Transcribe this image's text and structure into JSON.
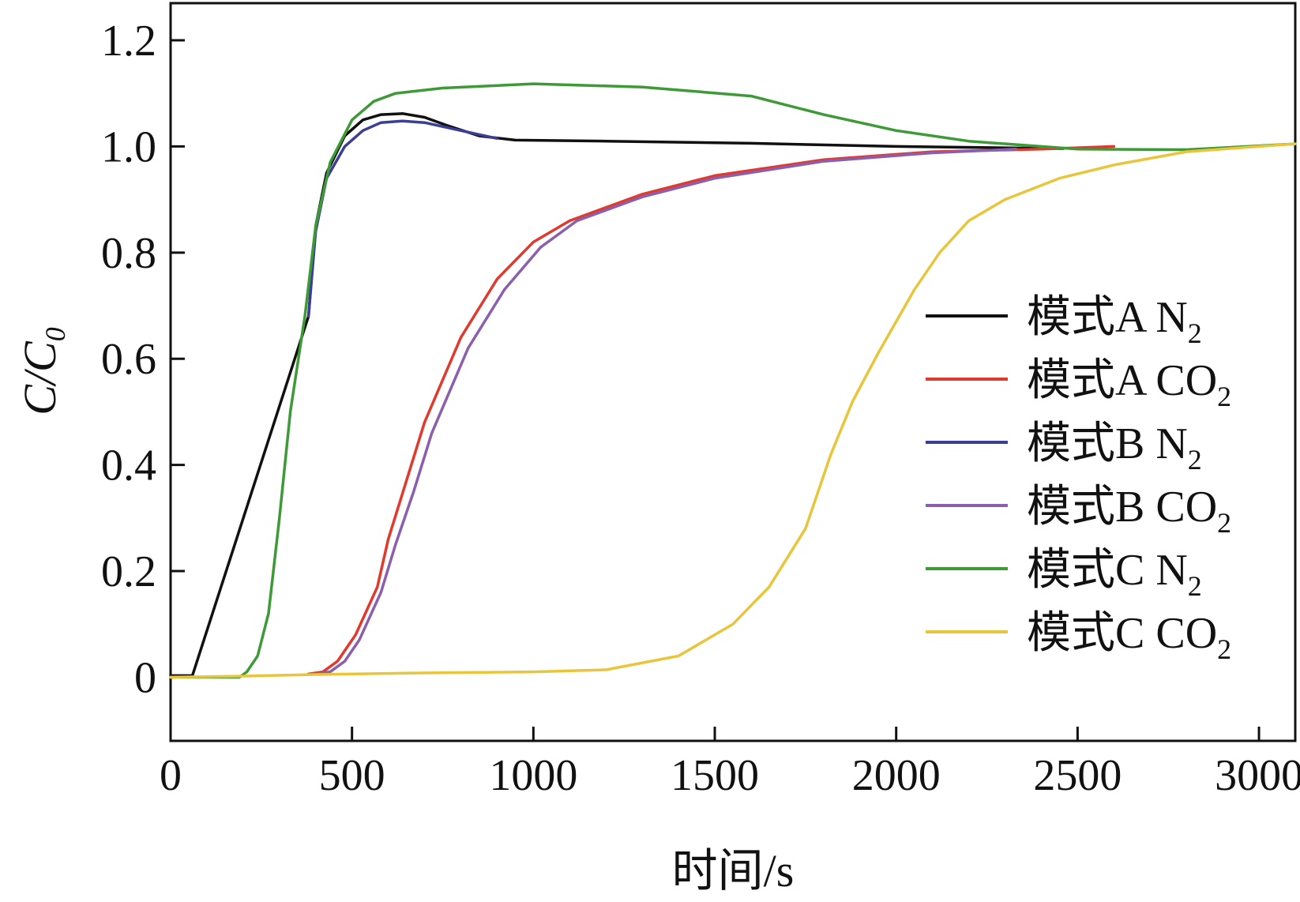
{
  "chart_data": {
    "type": "line",
    "xlabel": "时间/s",
    "ylabel": {
      "main": "C/C",
      "sub": "0"
    },
    "xlim": [
      0,
      3100
    ],
    "ylim": [
      -0.12,
      1.27
    ],
    "xticks": [
      0,
      500,
      1000,
      1500,
      2000,
      2500,
      3000
    ],
    "yticks": [
      0,
      0.2,
      0.4,
      0.6,
      0.8,
      1.0,
      1.2
    ],
    "xtick_labels": [
      "0",
      "500",
      "1000",
      "1500",
      "2000",
      "2500",
      "3000"
    ],
    "ytick_labels": [
      "0",
      "0.2",
      "0.4",
      "0.6",
      "0.8",
      "1.0",
      "1.2"
    ],
    "legend_position": "right",
    "series": [
      {
        "id": "a_n2",
        "name": {
          "main": "模式A N",
          "sub": "2"
        },
        "color": "#111111",
        "points": [
          [
            0,
            0.003
          ],
          [
            60,
            0.003
          ],
          [
            60,
            0.003
          ],
          [
            380,
            0.68
          ],
          [
            400,
            0.85
          ],
          [
            430,
            0.95
          ],
          [
            480,
            1.02
          ],
          [
            530,
            1.05
          ],
          [
            580,
            1.06
          ],
          [
            640,
            1.062
          ],
          [
            700,
            1.055
          ],
          [
            760,
            1.04
          ],
          [
            850,
            1.02
          ],
          [
            950,
            1.012
          ],
          [
            1200,
            1.01
          ],
          [
            1600,
            1.006
          ],
          [
            2000,
            1.0
          ],
          [
            2460,
            0.996
          ]
        ]
      },
      {
        "id": "a_co2",
        "name": {
          "main": "模式A CO",
          "sub": "2"
        },
        "color": "#e03a2f",
        "points": [
          [
            380,
            0.006
          ],
          [
            420,
            0.01
          ],
          [
            460,
            0.03
          ],
          [
            510,
            0.08
          ],
          [
            570,
            0.17
          ],
          [
            600,
            0.26
          ],
          [
            650,
            0.37
          ],
          [
            700,
            0.48
          ],
          [
            800,
            0.64
          ],
          [
            900,
            0.75
          ],
          [
            1000,
            0.82
          ],
          [
            1100,
            0.86
          ],
          [
            1300,
            0.91
          ],
          [
            1500,
            0.945
          ],
          [
            1800,
            0.975
          ],
          [
            2100,
            0.99
          ],
          [
            2400,
            0.995
          ],
          [
            2600,
            1.0
          ]
        ]
      },
      {
        "id": "b_n2",
        "name": {
          "main": "模式B N",
          "sub": "2"
        },
        "color": "#3a3f94",
        "points": [
          [
            380,
            0.68
          ],
          [
            400,
            0.84
          ],
          [
            430,
            0.94
          ],
          [
            480,
            1.0
          ],
          [
            530,
            1.03
          ],
          [
            580,
            1.045
          ],
          [
            640,
            1.048
          ],
          [
            700,
            1.045
          ],
          [
            800,
            1.03
          ],
          [
            900,
            1.015
          ]
        ]
      },
      {
        "id": "b_co2",
        "name": {
          "main": "模式B CO",
          "sub": "2"
        },
        "color": "#8c5fae",
        "points": [
          [
            400,
            0.006
          ],
          [
            440,
            0.01
          ],
          [
            480,
            0.03
          ],
          [
            520,
            0.07
          ],
          [
            580,
            0.16
          ],
          [
            620,
            0.25
          ],
          [
            670,
            0.35
          ],
          [
            720,
            0.46
          ],
          [
            820,
            0.62
          ],
          [
            920,
            0.73
          ],
          [
            1020,
            0.81
          ],
          [
            1120,
            0.86
          ],
          [
            1300,
            0.905
          ],
          [
            1500,
            0.94
          ],
          [
            1800,
            0.972
          ],
          [
            2100,
            0.988
          ],
          [
            2330,
            0.995
          ]
        ]
      },
      {
        "id": "c_n2",
        "name": {
          "main": "模式C N",
          "sub": "2"
        },
        "color": "#3d9a36",
        "points": [
          [
            0,
            0.0
          ],
          [
            190,
            0.0
          ],
          [
            210,
            0.01
          ],
          [
            240,
            0.04
          ],
          [
            270,
            0.12
          ],
          [
            300,
            0.3
          ],
          [
            330,
            0.5
          ],
          [
            370,
            0.68
          ],
          [
            400,
            0.85
          ],
          [
            440,
            0.97
          ],
          [
            500,
            1.05
          ],
          [
            560,
            1.085
          ],
          [
            620,
            1.1
          ],
          [
            750,
            1.11
          ],
          [
            1000,
            1.118
          ],
          [
            1300,
            1.112
          ],
          [
            1600,
            1.095
          ],
          [
            1800,
            1.06
          ],
          [
            2000,
            1.03
          ],
          [
            2200,
            1.01
          ],
          [
            2500,
            0.995
          ],
          [
            2800,
            0.994
          ],
          [
            3100,
            1.005
          ]
        ]
      },
      {
        "id": "c_co2",
        "name": {
          "main": "模式C CO",
          "sub": "2"
        },
        "color": "#e8c53a",
        "points": [
          [
            0,
            0.0
          ],
          [
            200,
            0.002
          ],
          [
            400,
            0.005
          ],
          [
            700,
            0.008
          ],
          [
            1000,
            0.01
          ],
          [
            1200,
            0.014
          ],
          [
            1400,
            0.04
          ],
          [
            1550,
            0.1
          ],
          [
            1650,
            0.17
          ],
          [
            1750,
            0.28
          ],
          [
            1820,
            0.42
          ],
          [
            1880,
            0.52
          ],
          [
            1950,
            0.61
          ],
          [
            2050,
            0.73
          ],
          [
            2120,
            0.8
          ],
          [
            2200,
            0.86
          ],
          [
            2300,
            0.9
          ],
          [
            2450,
            0.94
          ],
          [
            2600,
            0.965
          ],
          [
            2800,
            0.99
          ],
          [
            3000,
            1.0
          ],
          [
            3100,
            1.005
          ]
        ]
      }
    ]
  }
}
